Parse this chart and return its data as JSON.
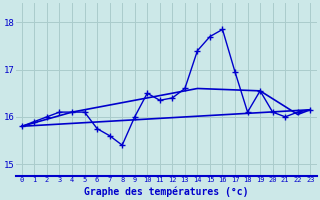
{
  "xlabel": "Graphe des températures (°c)",
  "bg_color": "#cce8e8",
  "line_color": "#0000cc",
  "grid_color": "#aacccc",
  "border_bottom_color": "#0000cc",
  "x_ticks": [
    0,
    1,
    2,
    3,
    4,
    5,
    6,
    7,
    8,
    9,
    10,
    11,
    12,
    13,
    14,
    15,
    16,
    17,
    18,
    19,
    20,
    21,
    22,
    23
  ],
  "ylim": [
    14.75,
    18.4
  ],
  "yticks": [
    15,
    16,
    17,
    18
  ],
  "series1": [
    15.8,
    15.9,
    16.0,
    16.1,
    16.1,
    16.1,
    15.75,
    15.6,
    15.4,
    16.0,
    16.5,
    16.35,
    16.4,
    16.6,
    17.4,
    17.7,
    17.85,
    16.95,
    16.1,
    16.55,
    16.1,
    16.0,
    16.1,
    16.15
  ],
  "series2": {
    "x": [
      0,
      23
    ],
    "y": [
      15.8,
      16.15
    ]
  },
  "series3": {
    "x": [
      0,
      4,
      14,
      19,
      22,
      23
    ],
    "y": [
      15.8,
      16.1,
      16.6,
      16.55,
      16.05,
      16.15
    ]
  }
}
